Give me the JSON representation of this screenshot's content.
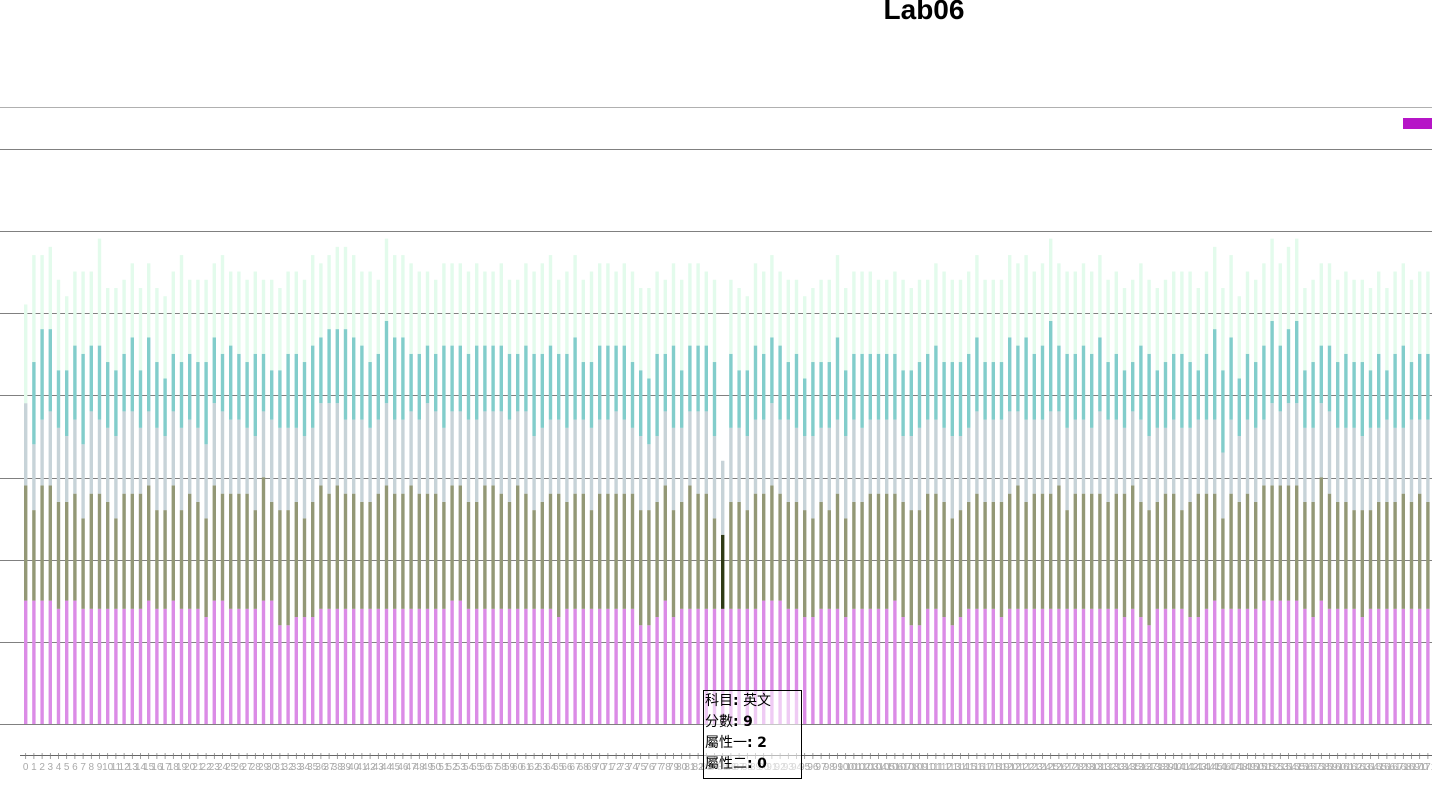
{
  "page": {
    "title": "Lab06"
  },
  "colors": {
    "layer1": "#db8ce6",
    "layer2": "#939876",
    "layer3": "#c7d3d8",
    "layer4": "#82cdcb",
    "layer5": "#e3fbec",
    "highlight": "#2f3b16",
    "legend_swatch": "#b615c7",
    "gridline": "#808080"
  },
  "tooltip": {
    "subject_label": "科目",
    "subject_value": "英文",
    "score_label": "分數",
    "score_value": "9",
    "attr1_label": "屬性一",
    "attr1_value": "2",
    "attr2_label": "屬性二",
    "attr2_value": "0"
  },
  "chart_data": {
    "type": "bar",
    "stacked": true,
    "title": "Lab06",
    "xlabel": "",
    "ylabel": "",
    "ylim": [
      0,
      68
    ],
    "grid": true,
    "legend_placement": "top-right",
    "highlighted_index": 85,
    "categories_note_unused": "",
    "categories": [
      "0",
      "1",
      "2",
      "3",
      "4",
      "5",
      "6",
      "7",
      "8",
      "9",
      "10",
      "11",
      "12",
      "13",
      "14",
      "15",
      "16",
      "17",
      "18",
      "19",
      "20",
      "21",
      "22",
      "23",
      "24",
      "25",
      "26",
      "27",
      "28",
      "29",
      "30",
      "31",
      "32",
      "33",
      "34",
      "35",
      "36",
      "37",
      "38",
      "39",
      "40",
      "41",
      "42",
      "43",
      "44",
      "45",
      "46",
      "47",
      "48",
      "49",
      "50",
      "51",
      "52",
      "53",
      "54",
      "55",
      "56",
      "57",
      "58",
      "59",
      "60",
      "61",
      "62",
      "63",
      "64",
      "65",
      "66",
      "67",
      "68",
      "69",
      "70",
      "71",
      "72",
      "73",
      "74",
      "75",
      "76",
      "77",
      "78",
      "79",
      "80",
      "81",
      "82",
      "83",
      "84",
      "85",
      "86",
      "87",
      "88",
      "89",
      "90",
      "91",
      "92",
      "93",
      "94",
      "95",
      "96",
      "97",
      "98",
      "99",
      "100",
      "101",
      "102",
      "103",
      "104",
      "105",
      "106",
      "107",
      "108",
      "109",
      "110",
      "111",
      "112",
      "113",
      "114",
      "115",
      "116",
      "117",
      "118",
      "119",
      "120",
      "121",
      "122",
      "123",
      "124",
      "125",
      "126",
      "127",
      "128",
      "129",
      "130",
      "131",
      "132",
      "133",
      "134",
      "135",
      "136",
      "137",
      "138",
      "139",
      "140",
      "141",
      "142",
      "143",
      "144",
      "145",
      "146",
      "147",
      "148",
      "149",
      "150",
      "151",
      "152",
      "153",
      "154",
      "155",
      "156",
      "157",
      "158",
      "159",
      "160",
      "161",
      "162",
      "163",
      "164",
      "165",
      "166",
      "167",
      "168",
      "169",
      "170",
      "171",
      "172",
      "173"
    ],
    "series": [
      {
        "values": [
          15,
          15,
          15,
          15,
          14,
          15,
          15,
          14,
          14,
          14,
          14,
          14,
          14,
          14,
          14,
          15,
          14,
          14,
          15,
          14,
          14,
          14,
          13,
          15,
          15,
          14,
          14,
          14,
          14,
          15,
          15,
          12,
          12,
          13,
          13,
          13,
          14,
          14,
          14,
          14,
          14,
          14,
          14,
          14,
          14,
          14,
          14,
          14,
          14,
          14,
          14,
          14,
          15,
          15,
          14,
          14,
          14,
          14,
          14,
          14,
          14,
          14,
          14,
          14,
          14,
          13,
          14,
          14,
          14,
          14,
          14,
          14,
          14,
          14,
          14,
          12,
          12,
          13,
          15,
          13,
          14,
          14,
          14,
          14,
          14,
          14,
          14,
          14,
          14,
          14,
          15,
          15,
          15,
          14,
          14,
          13,
          13,
          14,
          14,
          14,
          13,
          14,
          14,
          14,
          14,
          14,
          15,
          13,
          12,
          12,
          14,
          14,
          13,
          12,
          13,
          14,
          14,
          14,
          14,
          13,
          14,
          14,
          14,
          14,
          14,
          14,
          14,
          14,
          14,
          14,
          14,
          14,
          14,
          14,
          13,
          14,
          13,
          12,
          14,
          14,
          14,
          14,
          13,
          13,
          14,
          15,
          14,
          14,
          14,
          14,
          14,
          15,
          15,
          15,
          15,
          15,
          14,
          13,
          15,
          14,
          14,
          14,
          14,
          13,
          14,
          14,
          14,
          14,
          14,
          14,
          14,
          14,
          14,
          14
        ]
      },
      {
        "values": [
          14,
          11,
          14,
          14,
          13,
          12,
          13,
          11,
          14,
          14,
          13,
          11,
          14,
          14,
          14,
          14,
          12,
          12,
          14,
          12,
          14,
          13,
          12,
          14,
          13,
          14,
          14,
          14,
          12,
          15,
          12,
          14,
          14,
          14,
          12,
          14,
          15,
          14,
          15,
          14,
          14,
          13,
          13,
          14,
          15,
          14,
          14,
          15,
          14,
          14,
          14,
          13,
          14,
          14,
          13,
          13,
          15,
          15,
          14,
          13,
          15,
          14,
          12,
          13,
          14,
          15,
          13,
          14,
          14,
          12,
          14,
          14,
          14,
          14,
          14,
          14,
          14,
          14,
          14,
          13,
          13,
          15,
          14,
          14,
          11,
          9,
          13,
          13,
          12,
          14,
          13,
          14,
          13,
          13,
          13,
          13,
          12,
          13,
          12,
          14,
          12,
          13,
          13,
          14,
          14,
          14,
          13,
          14,
          14,
          14,
          14,
          14,
          14,
          13,
          13,
          13,
          14,
          13,
          13,
          14,
          14,
          15,
          13,
          14,
          14,
          14,
          15,
          12,
          14,
          14,
          14,
          14,
          13,
          14,
          15,
          15,
          14,
          14,
          13,
          14,
          14,
          12,
          14,
          15,
          14,
          13,
          11,
          14,
          13,
          14,
          13,
          14,
          14,
          14,
          14,
          14,
          13,
          14,
          15,
          14,
          13,
          13,
          12,
          13,
          12,
          13,
          13,
          13,
          14,
          13,
          14,
          13,
          13,
          11
        ]
      },
      {
        "values": [
          10,
          8,
          8,
          9,
          9,
          8,
          9,
          9,
          10,
          9,
          9,
          10,
          10,
          10,
          8,
          9,
          10,
          9,
          9,
          10,
          9,
          9,
          9,
          10,
          10,
          9,
          9,
          8,
          9,
          8,
          10,
          10,
          10,
          9,
          10,
          9,
          10,
          11,
          10,
          9,
          9,
          10,
          9,
          9,
          10,
          9,
          9,
          9,
          9,
          11,
          10,
          9,
          9,
          9,
          10,
          10,
          9,
          9,
          10,
          10,
          9,
          10,
          9,
          9,
          9,
          9,
          9,
          9,
          9,
          10,
          9,
          9,
          10,
          9,
          8,
          9,
          8,
          8,
          9,
          10,
          9,
          9,
          10,
          10,
          10,
          9,
          9,
          9,
          9,
          9,
          9,
          10,
          9,
          10,
          9,
          9,
          10,
          9,
          10,
          9,
          10,
          10,
          9,
          9,
          9,
          9,
          9,
          8,
          9,
          10,
          9,
          9,
          9,
          10,
          9,
          9,
          10,
          10,
          10,
          10,
          10,
          9,
          10,
          9,
          9,
          10,
          9,
          10,
          9,
          9,
          8,
          10,
          10,
          9,
          8,
          9,
          10,
          9,
          9,
          8,
          9,
          10,
          9,
          9,
          9,
          9,
          8,
          9,
          8,
          9,
          9,
          8,
          10,
          9,
          10,
          10,
          9,
          9,
          9,
          10,
          9,
          9,
          10,
          9,
          10,
          9,
          10,
          9,
          8,
          10,
          9,
          10,
          10,
          9
        ]
      },
      {
        "values": [
          0,
          10,
          11,
          10,
          7,
          8,
          9,
          11,
          8,
          9,
          8,
          8,
          7,
          9,
          7,
          9,
          8,
          7,
          7,
          8,
          8,
          8,
          10,
          8,
          7,
          9,
          8,
          8,
          10,
          7,
          6,
          7,
          9,
          9,
          9,
          10,
          8,
          9,
          9,
          11,
          10,
          9,
          8,
          8,
          10,
          10,
          10,
          7,
          8,
          7,
          7,
          10,
          8,
          8,
          8,
          9,
          8,
          8,
          8,
          8,
          7,
          8,
          10,
          9,
          9,
          8,
          9,
          10,
          7,
          8,
          9,
          9,
          8,
          9,
          8,
          8,
          8,
          10,
          7,
          10,
          7,
          8,
          8,
          8,
          9,
          0,
          9,
          7,
          8,
          9,
          8,
          8,
          9,
          7,
          9,
          7,
          9,
          8,
          8,
          10,
          8,
          8,
          9,
          8,
          8,
          8,
          8,
          8,
          8,
          8,
          8,
          9,
          8,
          9,
          9,
          9,
          9,
          7,
          7,
          7,
          9,
          8,
          10,
          8,
          9,
          11,
          8,
          9,
          8,
          9,
          9,
          9,
          7,
          8,
          7,
          6,
          9,
          10,
          7,
          8,
          8,
          9,
          8,
          6,
          8,
          11,
          10,
          10,
          7,
          8,
          8,
          9,
          10,
          8,
          9,
          10,
          7,
          8,
          7,
          8,
          8,
          9,
          8,
          9,
          7,
          9,
          6,
          9,
          10,
          7,
          8,
          8,
          10,
          9
        ]
      },
      {
        "values": [
          12,
          13,
          9,
          10,
          11,
          9,
          9,
          10,
          9,
          13,
          9,
          10,
          9,
          9,
          10,
          9,
          9,
          10,
          10,
          13,
          9,
          10,
          10,
          9,
          12,
          9,
          10,
          10,
          10,
          9,
          11,
          10,
          10,
          10,
          10,
          11,
          9,
          9,
          10,
          10,
          10,
          9,
          11,
          9,
          10,
          10,
          10,
          11,
          10,
          9,
          9,
          10,
          10,
          10,
          10,
          10,
          9,
          9,
          10,
          9,
          9,
          10,
          10,
          11,
          11,
          9,
          10,
          10,
          10,
          11,
          10,
          10,
          9,
          10,
          11,
          10,
          11,
          10,
          9,
          10,
          11,
          10,
          10,
          9,
          10,
          0,
          9,
          10,
          9,
          10,
          10,
          10,
          9,
          10,
          9,
          10,
          9,
          10,
          10,
          10,
          10,
          10,
          10,
          10,
          9,
          9,
          10,
          11,
          10,
          10,
          9,
          10,
          11,
          10,
          10,
          10,
          10,
          10,
          10,
          10,
          10,
          10,
          10,
          10,
          10,
          10,
          10,
          10,
          10,
          10,
          10,
          10,
          10,
          10,
          10,
          10,
          10,
          9,
          10,
          10,
          10,
          10,
          11,
          10,
          10,
          10,
          10,
          10,
          10,
          10,
          10,
          10,
          10,
          10,
          10,
          10,
          10,
          10,
          10,
          10,
          10,
          10,
          10,
          10,
          10,
          10,
          10,
          10,
          10,
          10,
          10,
          10,
          10,
          10
        ]
      }
    ]
  }
}
